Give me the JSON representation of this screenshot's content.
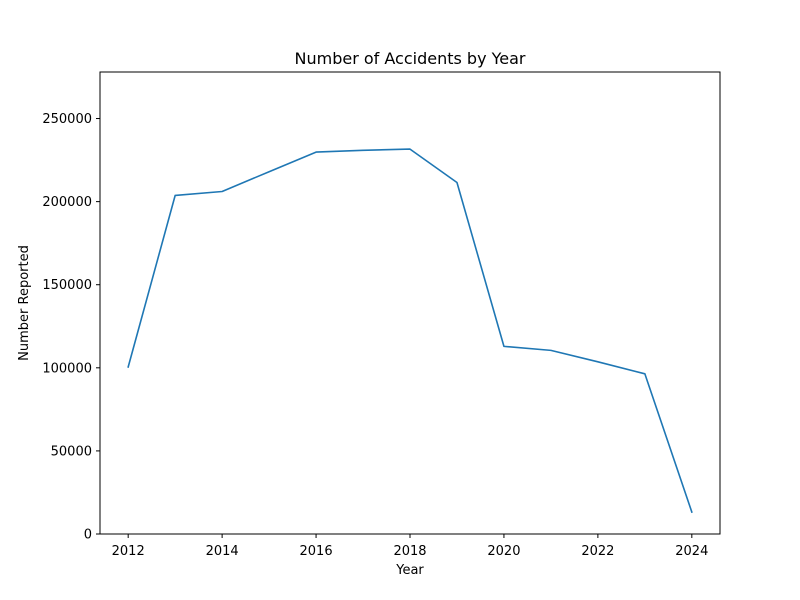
{
  "chart_data": {
    "type": "line",
    "title": "Number of Accidents by Year",
    "xlabel": "Year",
    "ylabel": "Number Reported",
    "x": [
      2012,
      2013,
      2014,
      2015,
      2016,
      2017,
      2018,
      2019,
      2020,
      2021,
      2022,
      2023,
      2024
    ],
    "series": [
      {
        "values": [
          100500,
          203700,
          206100,
          218000,
          229800,
          230900,
          231600,
          211500,
          112900,
          110500,
          103600,
          96400,
          13200
        ],
        "color": "#1f77b4"
      }
    ],
    "xlim": [
      2011.4,
      2024.6
    ],
    "ylim": [
      0,
      278000
    ],
    "xticks": [
      2012,
      2014,
      2016,
      2018,
      2020,
      2022,
      2024
    ],
    "yticks": [
      0,
      50000,
      100000,
      150000,
      200000,
      250000
    ],
    "grid": false,
    "legend": false
  }
}
